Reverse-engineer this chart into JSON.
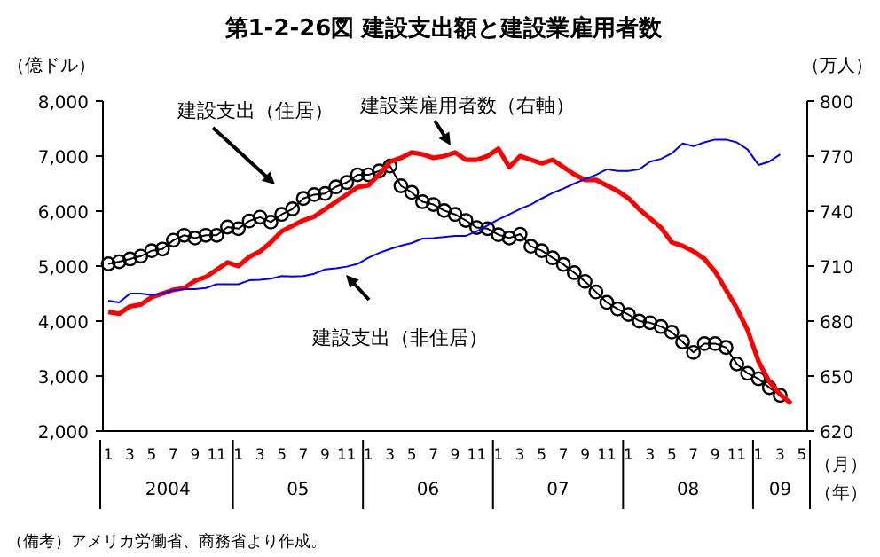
{
  "chart_data": {
    "type": "line",
    "title": "第1-2-26図 建設支出額と建設業雇用者数",
    "ylabel": "（億ドル）",
    "y2label": "（万人）",
    "categories": [
      "1",
      null,
      "3",
      null,
      "5",
      null,
      "7",
      null,
      "9",
      null,
      "11",
      null,
      "1",
      null,
      "3",
      null,
      "5",
      null,
      "7",
      null,
      "9",
      null,
      "11",
      null,
      "1",
      null,
      "3",
      null,
      "5",
      null,
      "7",
      null,
      "9",
      null,
      "11",
      null,
      "1",
      null,
      "3",
      null,
      "5",
      null,
      "7",
      null,
      "9",
      null,
      "11",
      null,
      "1",
      null,
      "3",
      null,
      "5",
      null,
      "7",
      null,
      "9",
      null,
      "11",
      null,
      "1",
      null,
      "3",
      null,
      "5"
    ],
    "annotations": [
      "2004",
      "05",
      "06",
      "07",
      "08",
      "09",
      "（月）",
      "（年）",
      "（備考）アメリカ労働省、商務省より作成。"
    ],
    "ylim": [
      2000,
      8000
    ],
    "yticks": [
      {
        "value": 2000,
        "label": "2,000"
      },
      {
        "value": 3000,
        "label": "3,000"
      },
      {
        "value": 4000,
        "label": "4,000"
      },
      {
        "value": 5000,
        "label": "5,000"
      },
      {
        "value": 6000,
        "label": "6,000"
      },
      {
        "value": 7000,
        "label": "7,000"
      },
      {
        "value": 8000,
        "label": "8,000"
      }
    ],
    "y2lim": [
      620,
      800
    ],
    "y2ticks": [
      620,
      650,
      680,
      710,
      740,
      770,
      800
    ],
    "grid": false,
    "series": [
      {
        "name": "建設支出（住居）",
        "color": "#000000",
        "marker": "circle",
        "values": [
          5040,
          5080,
          5130,
          5180,
          5280,
          5310,
          5470,
          5560,
          5510,
          5560,
          5560,
          5710,
          5680,
          5820,
          5890,
          5800,
          5940,
          6040,
          6230,
          6300,
          6320,
          6440,
          6520,
          6660,
          6660,
          6730,
          6820,
          6460,
          6340,
          6170,
          6120,
          6010,
          5940,
          5830,
          5700,
          5680,
          5570,
          5510,
          5580,
          5360,
          5280,
          5150,
          5030,
          4880,
          4720,
          4530,
          4340,
          4220,
          4120,
          4000,
          3970,
          3900,
          3800,
          3620,
          3430,
          3590,
          3590,
          3520,
          3220,
          3050,
          2950,
          2790,
          2650,
          null,
          null
        ]
      },
      {
        "name": "建設業雇用者数（右軸）",
        "color": "#ff0000",
        "axis": "y2",
        "values": [
          685,
          684,
          688,
          689,
          693,
          695,
          697,
          698,
          702,
          704,
          708,
          712,
          710,
          715,
          718,
          723,
          729,
          732,
          735,
          737,
          741,
          745,
          749,
          753,
          754,
          760,
          767,
          769,
          772,
          771,
          769,
          770,
          772,
          768,
          768,
          770,
          774,
          764,
          770,
          768,
          766,
          768,
          764,
          760,
          757,
          757,
          754,
          751,
          747,
          741,
          736,
          731,
          723,
          721,
          718,
          714,
          707,
          697,
          687,
          675,
          658,
          647,
          640,
          635,
          null
        ]
      },
      {
        "name": "建設支出（非住居）",
        "color": "#0000ff",
        "values": [
          4370,
          4340,
          4500,
          4500,
          4470,
          4500,
          4560,
          4580,
          4580,
          4600,
          4670,
          4670,
          4670,
          4740,
          4750,
          4770,
          4820,
          4810,
          4820,
          4860,
          4940,
          4960,
          4990,
          5040,
          5150,
          5240,
          5310,
          5370,
          5420,
          5500,
          5510,
          5530,
          5550,
          5550,
          5630,
          5740,
          5850,
          5940,
          6040,
          6120,
          6230,
          6330,
          6410,
          6500,
          6580,
          6660,
          6760,
          6730,
          6730,
          6760,
          6900,
          6950,
          7050,
          7230,
          7180,
          7250,
          7300,
          7300,
          7250,
          7120,
          6840,
          6900,
          7030,
          null,
          null
        ]
      }
    ]
  }
}
